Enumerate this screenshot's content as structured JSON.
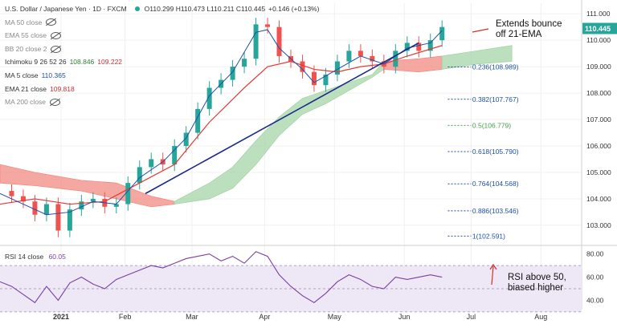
{
  "header": {
    "symbol_title": "U.S. Dollar / Japanese Yen · 1D · FXCM",
    "ohlc": "O110.299 H110.473 L110.211 C110.445",
    "change": "+0.146 (+0.13%)"
  },
  "indicators": [
    {
      "label": "MA 50 close",
      "value": "",
      "hidden": true
    },
    {
      "label": "EMA 55 close",
      "value": "",
      "hidden": true
    },
    {
      "label": "BB 20 close 2",
      "value": "",
      "hidden": true
    },
    {
      "label": "Ichimoku 9 26 52 26",
      "value": "108.846",
      "value2": "109.222"
    },
    {
      "label": "MA 5 close",
      "value": "110.365"
    },
    {
      "label": "EMA 21 close",
      "value": "109.818"
    },
    {
      "label": "MA 200 close",
      "value": "",
      "hidden": true
    }
  ],
  "annotations": {
    "main": "Extends bounce\noff 21-EMA",
    "rsi": "RSI above 50,\nbiased higher"
  },
  "rsi": {
    "label": "RSI 14 close",
    "value": "60.05"
  },
  "colors": {
    "up": "#26a69a",
    "down": "#ef5350",
    "ema21": "#e53935",
    "ma5": "#1e4fa3",
    "trendline": "#1a2a8a",
    "cloud_bull": "#a5d6a7",
    "cloud_bear": "#f28b82",
    "rsi_line": "#7b3fa0",
    "rsi_band": "#ede7f6",
    "fib": "#1e4fa3",
    "fib_mid": "#43a047"
  },
  "chart_data": [
    {
      "type": "candlestick",
      "title": "U.S. Dollar / Japanese Yen",
      "interval": "1D",
      "y_ticks": [
        "103.000",
        "104.000",
        "105.000",
        "106.000",
        "107.000",
        "108.000",
        "109.000",
        "110.000",
        "111.000"
      ],
      "ylim": [
        102.3,
        111.4
      ],
      "x_ticks": [
        "2021",
        "Feb",
        "Mar",
        "Apr",
        "May",
        "Jun",
        "Jul",
        "Aug"
      ],
      "last_price": "110.445",
      "fib_levels": [
        {
          "label": "0.236(108.989)",
          "value": 108.989
        },
        {
          "label": "0.382(107.767)",
          "value": 107.767
        },
        {
          "label": "0.5(106.779)",
          "value": 106.779
        },
        {
          "label": "0.618(105.790)",
          "value": 105.79
        },
        {
          "label": "0.764(104.568)",
          "value": 104.568
        },
        {
          "label": "0.886(103.546)",
          "value": 103.546
        },
        {
          "label": "1(102.591)",
          "value": 102.591
        }
      ],
      "trendline": {
        "from": [
          0.25,
          104.2
        ],
        "to": [
          0.72,
          109.9
        ]
      },
      "close_points": [
        [
          0.0,
          104.3
        ],
        [
          0.02,
          104.1
        ],
        [
          0.04,
          103.9
        ],
        [
          0.06,
          103.4
        ],
        [
          0.08,
          103.8
        ],
        [
          0.1,
          102.8
        ],
        [
          0.12,
          103.6
        ],
        [
          0.14,
          103.9
        ],
        [
          0.16,
          104.0
        ],
        [
          0.18,
          103.7
        ],
        [
          0.2,
          103.8
        ],
        [
          0.22,
          104.6
        ],
        [
          0.24,
          105.2
        ],
        [
          0.26,
          105.5
        ],
        [
          0.28,
          105.3
        ],
        [
          0.3,
          106.0
        ],
        [
          0.32,
          106.5
        ],
        [
          0.34,
          107.4
        ],
        [
          0.36,
          108.2
        ],
        [
          0.38,
          108.5
        ],
        [
          0.4,
          109.0
        ],
        [
          0.42,
          109.3
        ],
        [
          0.44,
          110.6
        ],
        [
          0.46,
          110.5
        ],
        [
          0.48,
          109.4
        ],
        [
          0.5,
          109.2
        ],
        [
          0.52,
          108.8
        ],
        [
          0.54,
          108.3
        ],
        [
          0.56,
          108.7
        ],
        [
          0.58,
          109.2
        ],
        [
          0.6,
          109.6
        ],
        [
          0.62,
          109.4
        ],
        [
          0.64,
          109.2
        ],
        [
          0.66,
          109.0
        ],
        [
          0.68,
          109.6
        ],
        [
          0.7,
          109.9
        ],
        [
          0.72,
          109.6
        ],
        [
          0.74,
          110.0
        ],
        [
          0.76,
          110.5
        ]
      ],
      "ema21_points": [
        [
          0.0,
          103.8
        ],
        [
          0.06,
          104.0
        ],
        [
          0.12,
          103.8
        ],
        [
          0.18,
          103.9
        ],
        [
          0.24,
          104.6
        ],
        [
          0.3,
          105.3
        ],
        [
          0.36,
          106.9
        ],
        [
          0.42,
          108.2
        ],
        [
          0.46,
          109.0
        ],
        [
          0.5,
          109.2
        ],
        [
          0.54,
          108.9
        ],
        [
          0.58,
          108.8
        ],
        [
          0.62,
          109.0
        ],
        [
          0.66,
          109.1
        ],
        [
          0.7,
          109.4
        ],
        [
          0.76,
          109.8
        ]
      ],
      "ma5_points": [
        [
          0.0,
          104.2
        ],
        [
          0.04,
          103.8
        ],
        [
          0.08,
          103.4
        ],
        [
          0.12,
          103.5
        ],
        [
          0.16,
          103.9
        ],
        [
          0.2,
          103.8
        ],
        [
          0.24,
          104.8
        ],
        [
          0.28,
          105.4
        ],
        [
          0.32,
          106.3
        ],
        [
          0.36,
          107.9
        ],
        [
          0.4,
          108.8
        ],
        [
          0.44,
          110.3
        ],
        [
          0.46,
          110.4
        ],
        [
          0.48,
          109.7
        ],
        [
          0.52,
          108.9
        ],
        [
          0.54,
          108.4
        ],
        [
          0.58,
          108.9
        ],
        [
          0.62,
          109.4
        ],
        [
          0.66,
          109.1
        ],
        [
          0.7,
          109.7
        ],
        [
          0.74,
          109.9
        ],
        [
          0.76,
          110.365
        ]
      ],
      "cloud": {
        "bear_segments": [
          {
            "upper": [
              [
                0.0,
                105.3
              ],
              [
                0.06,
                105.0
              ],
              [
                0.14,
                104.7
              ],
              [
                0.2,
                104.6
              ],
              [
                0.26,
                104.1
              ],
              [
                0.3,
                103.9
              ]
            ],
            "lower": [
              [
                0.0,
                104.6
              ],
              [
                0.06,
                104.5
              ],
              [
                0.14,
                104.3
              ],
              [
                0.2,
                104.0
              ],
              [
                0.26,
                103.7
              ],
              [
                0.3,
                103.8
              ]
            ]
          },
          {
            "upper": [
              [
                0.66,
                109.2
              ],
              [
                0.72,
                109.3
              ],
              [
                0.76,
                109.4
              ]
            ],
            "lower": [
              [
                0.66,
                108.9
              ],
              [
                0.72,
                108.8
              ],
              [
                0.76,
                108.9
              ]
            ]
          }
        ],
        "bull_segments": [
          {
            "upper": [
              [
                0.3,
                103.9
              ],
              [
                0.36,
                104.6
              ],
              [
                0.4,
                105.2
              ],
              [
                0.44,
                106.2
              ],
              [
                0.48,
                107.1
              ],
              [
                0.52,
                107.8
              ],
              [
                0.56,
                108.1
              ],
              [
                0.6,
                108.4
              ],
              [
                0.64,
                108.7
              ],
              [
                0.66,
                109.2
              ]
            ],
            "lower": [
              [
                0.3,
                103.8
              ],
              [
                0.36,
                104.0
              ],
              [
                0.4,
                104.4
              ],
              [
                0.44,
                105.3
              ],
              [
                0.48,
                106.4
              ],
              [
                0.52,
                107.2
              ],
              [
                0.56,
                107.6
              ],
              [
                0.6,
                108.1
              ],
              [
                0.64,
                108.6
              ],
              [
                0.66,
                108.9
              ]
            ]
          },
          {
            "upper": [
              [
                0.76,
                109.4
              ],
              [
                0.82,
                109.6
              ],
              [
                0.88,
                109.8
              ]
            ],
            "lower": [
              [
                0.76,
                108.9
              ],
              [
                0.82,
                109.1
              ],
              [
                0.88,
                109.2
              ]
            ]
          }
        ]
      }
    },
    {
      "type": "line",
      "title": "RSI 14 close",
      "y_ticks": [
        "40.00",
        "60.00",
        "80.00"
      ],
      "ylim": [
        32,
        86
      ],
      "band": [
        30,
        70
      ],
      "series": [
        {
          "name": "RSI 14 close",
          "points": [
            [
              0.0,
              56
            ],
            [
              0.02,
              52
            ],
            [
              0.04,
              45
            ],
            [
              0.06,
              38
            ],
            [
              0.08,
              52
            ],
            [
              0.1,
              40
            ],
            [
              0.12,
              55
            ],
            [
              0.14,
              60
            ],
            [
              0.16,
              54
            ],
            [
              0.18,
              50
            ],
            [
              0.2,
              58
            ],
            [
              0.22,
              62
            ],
            [
              0.24,
              66
            ],
            [
              0.26,
              70
            ],
            [
              0.28,
              68
            ],
            [
              0.3,
              72
            ],
            [
              0.32,
              76
            ],
            [
              0.34,
              78
            ],
            [
              0.36,
              80
            ],
            [
              0.38,
              74
            ],
            [
              0.4,
              78
            ],
            [
              0.42,
              72
            ],
            [
              0.44,
              82
            ],
            [
              0.46,
              78
            ],
            [
              0.48,
              62
            ],
            [
              0.5,
              52
            ],
            [
              0.52,
              44
            ],
            [
              0.54,
              38
            ],
            [
              0.56,
              46
            ],
            [
              0.58,
              56
            ],
            [
              0.6,
              62
            ],
            [
              0.62,
              58
            ],
            [
              0.64,
              52
            ],
            [
              0.66,
              50
            ],
            [
              0.68,
              60
            ],
            [
              0.7,
              58
            ],
            [
              0.72,
              60
            ],
            [
              0.74,
              62
            ],
            [
              0.76,
              60
            ]
          ]
        }
      ]
    }
  ]
}
